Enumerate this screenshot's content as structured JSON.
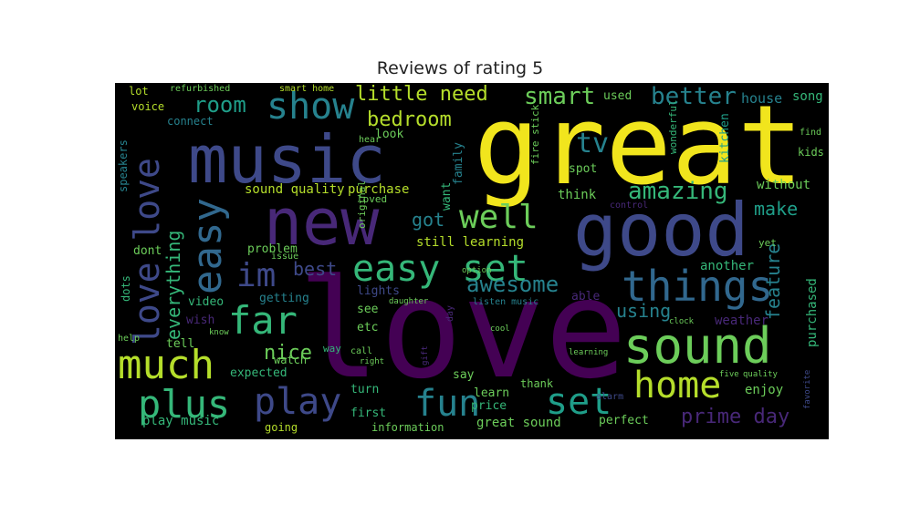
{
  "title": "Reviews of rating 5",
  "palette": {
    "yellow": "#f1e51d",
    "lime": "#b5de2b",
    "green": "#6ccd5a",
    "teal_green": "#35b779",
    "teal": "#1f9e89",
    "cyan": "#26828e",
    "blue": "#31688e",
    "indigo": "#3e4989",
    "purple": "#482878",
    "dark_purple": "#440154",
    "background": "#000000"
  },
  "words": [
    {
      "text": "love",
      "color": "#440154"
    },
    {
      "text": "great",
      "color": "#f1e51d"
    },
    {
      "text": "music",
      "color": "#3e4989"
    },
    {
      "text": "good",
      "color": "#3e4989"
    },
    {
      "text": "new",
      "color": "#482878"
    },
    {
      "text": "sound",
      "color": "#6ccd5a"
    },
    {
      "text": "easy set",
      "color": "#35b779"
    },
    {
      "text": "love love",
      "color": "#3e4989"
    },
    {
      "text": "easy",
      "color": "#31688e"
    },
    {
      "text": "things",
      "color": "#31688e"
    },
    {
      "text": "show",
      "color": "#26828e"
    },
    {
      "text": "much",
      "color": "#b5de2b"
    },
    {
      "text": "plus",
      "color": "#35b779"
    },
    {
      "text": "play",
      "color": "#3e4989"
    },
    {
      "text": "fun",
      "color": "#26828e"
    },
    {
      "text": "set",
      "color": "#1f9e89"
    },
    {
      "text": "home",
      "color": "#b5de2b"
    },
    {
      "text": "far",
      "color": "#35b779"
    },
    {
      "text": "well",
      "color": "#6ccd5a"
    },
    {
      "text": "im",
      "color": "#3e4989"
    },
    {
      "text": "tv",
      "color": "#26828e"
    },
    {
      "text": "amazing",
      "color": "#35b779"
    },
    {
      "text": "awesome",
      "color": "#26828e"
    },
    {
      "text": "better",
      "color": "#26828e"
    },
    {
      "text": "smart",
      "color": "#6ccd5a"
    },
    {
      "text": "room",
      "color": "#1f9e89"
    },
    {
      "text": "little need",
      "color": "#b5de2b"
    },
    {
      "text": "bedroom",
      "color": "#b5de2b"
    },
    {
      "text": "prime day",
      "color": "#482878"
    },
    {
      "text": "nice",
      "color": "#6ccd5a"
    },
    {
      "text": "make",
      "color": "#1f9e89"
    },
    {
      "text": "feature",
      "color": "#26828e"
    },
    {
      "text": "everything",
      "color": "#35b779"
    },
    {
      "text": "got",
      "color": "#26828e"
    },
    {
      "text": "using",
      "color": "#26828e"
    },
    {
      "text": "best",
      "color": "#3e4989"
    },
    {
      "text": "play music",
      "color": "#35b779"
    },
    {
      "text": "great sound",
      "color": "#6ccd5a"
    },
    {
      "text": "sound quality",
      "color": "#b5de2b"
    },
    {
      "text": "purchase",
      "color": "#b5de2b"
    },
    {
      "text": "still learning",
      "color": "#b5de2b"
    },
    {
      "text": "kitchen",
      "color": "#1f9e89"
    },
    {
      "text": "house",
      "color": "#26828e"
    },
    {
      "text": "song",
      "color": "#35b779"
    },
    {
      "text": "purchased",
      "color": "#35b779"
    },
    {
      "text": "another",
      "color": "#35b779"
    },
    {
      "text": "without",
      "color": "#6ccd5a"
    },
    {
      "text": "think",
      "color": "#6ccd5a"
    },
    {
      "text": "weather",
      "color": "#482878"
    },
    {
      "text": "enjoy",
      "color": "#6ccd5a"
    },
    {
      "text": "perfect",
      "color": "#6ccd5a"
    },
    {
      "text": "price",
      "color": "#35b779"
    },
    {
      "text": "learn",
      "color": "#6ccd5a"
    },
    {
      "text": "turn",
      "color": "#35b779"
    },
    {
      "text": "first",
      "color": "#35b779"
    },
    {
      "text": "information",
      "color": "#6ccd5a"
    },
    {
      "text": "going",
      "color": "#b5de2b"
    },
    {
      "text": "expected",
      "color": "#35b779"
    },
    {
      "text": "tell",
      "color": "#6ccd5a"
    },
    {
      "text": "wish",
      "color": "#482878"
    },
    {
      "text": "video",
      "color": "#35b779"
    },
    {
      "text": "getting",
      "color": "#26828e"
    },
    {
      "text": "problem",
      "color": "#6ccd5a"
    },
    {
      "text": "dont",
      "color": "#6ccd5a"
    },
    {
      "text": "lights",
      "color": "#3e4989"
    },
    {
      "text": "etc",
      "color": "#6ccd5a"
    },
    {
      "text": "see",
      "color": "#6ccd5a"
    },
    {
      "text": "watch",
      "color": "#6ccd5a"
    },
    {
      "text": "able",
      "color": "#482878"
    },
    {
      "text": "say",
      "color": "#6ccd5a"
    },
    {
      "text": "thank",
      "color": "#6ccd5a"
    },
    {
      "text": "used",
      "color": "#6ccd5a"
    },
    {
      "text": "look",
      "color": "#6ccd5a"
    },
    {
      "text": "want",
      "color": "#35b779"
    },
    {
      "text": "family",
      "color": "#26828e"
    },
    {
      "text": "spot",
      "color": "#6ccd5a"
    },
    {
      "text": "connect",
      "color": "#26828e"
    },
    {
      "text": "voice",
      "color": "#b5de2b"
    },
    {
      "text": "lot",
      "color": "#b5de2b"
    },
    {
      "text": "refurbished",
      "color": "#6ccd5a"
    },
    {
      "text": "smart home",
      "color": "#b5de2b"
    },
    {
      "text": "speakers",
      "color": "#26828e"
    },
    {
      "text": "dots",
      "color": "#35b779"
    },
    {
      "text": "kids",
      "color": "#6ccd5a"
    },
    {
      "text": "yet",
      "color": "#6ccd5a"
    },
    {
      "text": "loved",
      "color": "#6ccd5a"
    },
    {
      "text": "original",
      "color": "#6ccd5a"
    },
    {
      "text": "way",
      "color": "#35b779"
    },
    {
      "text": "help",
      "color": "#6ccd5a"
    },
    {
      "text": "fire stick",
      "color": "#6ccd5a"
    },
    {
      "text": "listen music",
      "color": "#26828e"
    },
    {
      "text": "find",
      "color": "#6ccd5a"
    },
    {
      "text": "wonderful",
      "color": "#35b779"
    },
    {
      "text": "day",
      "color": "#482878"
    },
    {
      "text": "call",
      "color": "#6ccd5a"
    },
    {
      "text": "alarm",
      "color": "#3e4989"
    },
    {
      "text": "issue",
      "color": "#6ccd5a"
    },
    {
      "text": "control",
      "color": "#482878"
    },
    {
      "text": "hear",
      "color": "#6ccd5a"
    },
    {
      "text": "cool",
      "color": "#6ccd5a"
    },
    {
      "text": "clock",
      "color": "#6ccd5a"
    },
    {
      "text": "option",
      "color": "#6ccd5a"
    },
    {
      "text": "daughter",
      "color": "#6ccd5a"
    },
    {
      "text": "know",
      "color": "#6ccd5a"
    },
    {
      "text": "right",
      "color": "#6ccd5a"
    },
    {
      "text": "gift",
      "color": "#482878"
    },
    {
      "text": "learning",
      "color": "#6ccd5a"
    },
    {
      "text": "five",
      "color": "#6ccd5a"
    },
    {
      "text": "quality",
      "color": "#6ccd5a"
    },
    {
      "text": "favorite",
      "color": "#3e4989"
    }
  ]
}
